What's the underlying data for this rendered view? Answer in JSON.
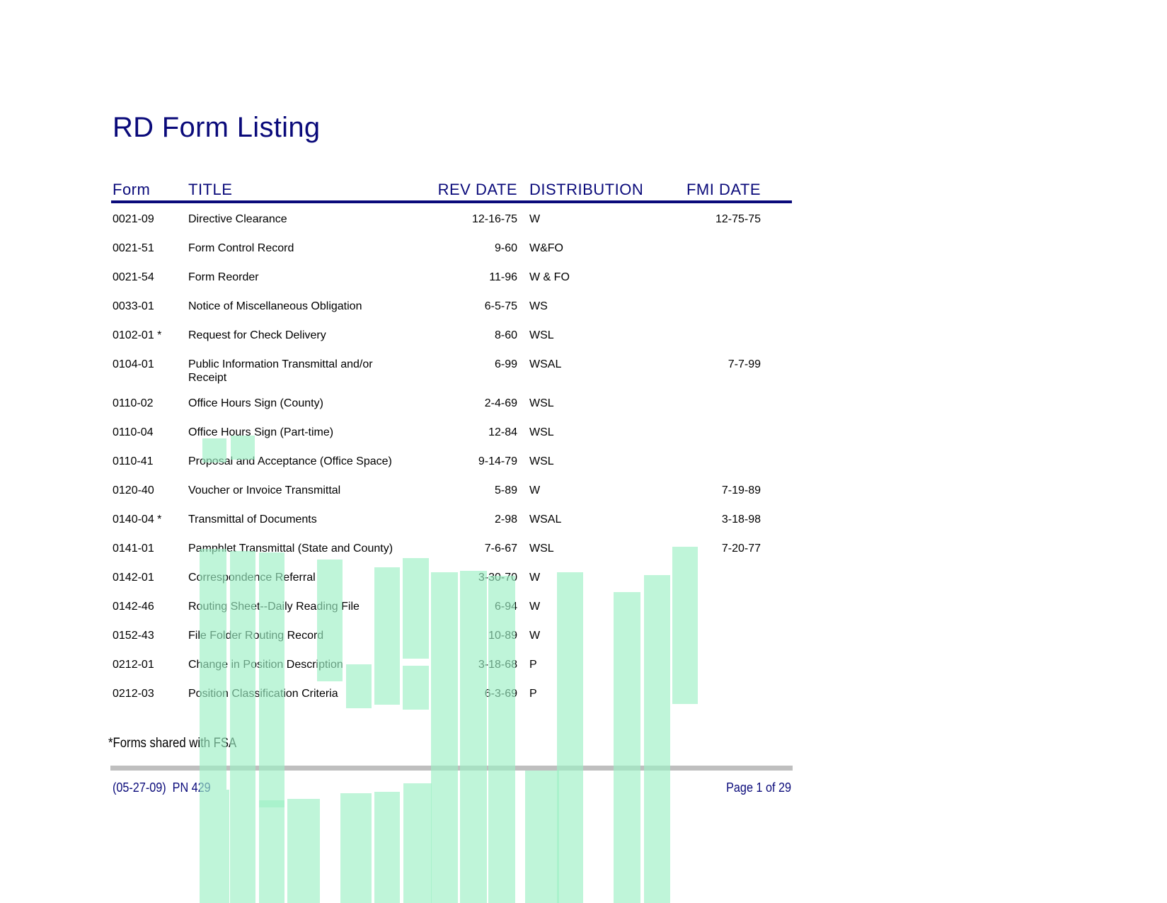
{
  "document": {
    "title": "RD Form Listing",
    "columns": {
      "form": "Form",
      "title": "TITLE",
      "rev_date": "REV DATE",
      "distribution": "DISTRIBUTION",
      "fmi_date": "FMI DATE"
    },
    "rows": [
      {
        "form": "0021-09",
        "title": "Directive Clearance",
        "rev": "12-16-75",
        "dist": "W",
        "fmi": "12-75-75"
      },
      {
        "form": "0021-51",
        "title": "Form Control Record",
        "rev": "9-60",
        "dist": "W&FO",
        "fmi": ""
      },
      {
        "form": "0021-54",
        "title": "Form Reorder",
        "rev": "11-96",
        "dist": "W & FO",
        "fmi": ""
      },
      {
        "form": "0033-01",
        "title": "Notice of Miscellaneous Obligation",
        "rev": "6-5-75",
        "dist": "WS",
        "fmi": ""
      },
      {
        "form": "0102-01 *",
        "title": "Request for Check Delivery",
        "rev": "8-60",
        "dist": "WSL",
        "fmi": ""
      },
      {
        "form": "0104-01",
        "title": "Public Information Transmittal and/or Receipt",
        "rev": "6-99",
        "dist": "WSAL",
        "fmi": "7-7-99"
      },
      {
        "form": "0110-02",
        "title": "Office Hours Sign (County)",
        "rev": "2-4-69",
        "dist": "WSL",
        "fmi": ""
      },
      {
        "form": "0110-04",
        "title": "Office Hours Sign (Part-time)",
        "rev": "12-84",
        "dist": "WSL",
        "fmi": ""
      },
      {
        "form": "0110-41",
        "title": "Proposal and Acceptance (Office Space)",
        "rev": "9-14-79",
        "dist": "WSL",
        "fmi": ""
      },
      {
        "form": "0120-40",
        "title": "Voucher or Invoice Transmittal",
        "rev": "5-89",
        "dist": "W",
        "fmi": "7-19-89"
      },
      {
        "form": "0140-04 *",
        "title": "Transmittal of Documents",
        "rev": "2-98",
        "dist": "WSAL",
        "fmi": "3-18-98"
      },
      {
        "form": "0141-01",
        "title": "Pamphlet Transmittal (State and County)",
        "rev": "7-6-67",
        "dist": "WSL",
        "fmi": "7-20-77"
      },
      {
        "form": "0142-01",
        "title": "Correspondence Referral",
        "rev": "3-30-70",
        "dist": "W",
        "fmi": ""
      },
      {
        "form": "0142-46",
        "title": "Routing Sheet--Daily Reading File",
        "rev": "6-94",
        "dist": "W",
        "fmi": ""
      },
      {
        "form": "0152-43",
        "title": "File Folder Routing Record",
        "rev": "10-89",
        "dist": "W",
        "fmi": ""
      },
      {
        "form": "0212-01",
        "title": "Change in Position Description",
        "rev": "3-18-68",
        "dist": "P",
        "fmi": ""
      },
      {
        "form": "0212-03",
        "title": "Position Classification Criteria",
        "rev": "6-3-69",
        "dist": "P",
        "fmi": ""
      }
    ],
    "note": "*Forms shared with FSA",
    "footer_left": "(05-27-09)  PN 429",
    "footer_right": "Page 1 of 29"
  }
}
